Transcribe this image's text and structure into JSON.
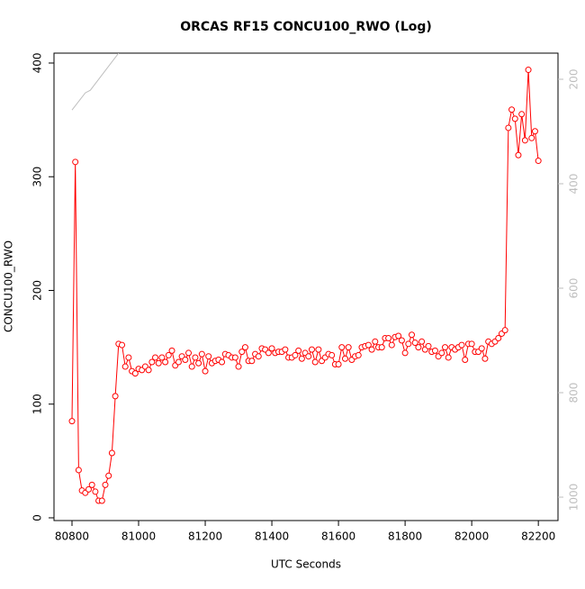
{
  "chart_data": {
    "type": "line",
    "title": "ORCAS RF15 CONCU100_RWO (Log)",
    "x_label": "UTC Seconds",
    "y_label": "CONCU100_RWO",
    "x": [
      80800,
      80810,
      80820,
      80830,
      80840,
      80850,
      80860,
      80870,
      80880,
      80890,
      80900,
      80910,
      80920,
      80930,
      80940,
      80950,
      80960,
      80970,
      80980,
      80990,
      81000,
      81010,
      81020,
      81030,
      81040,
      81050,
      81060,
      81070,
      81080,
      81090,
      81100,
      81110,
      81120,
      81130,
      81140,
      81150,
      81160,
      81170,
      81180,
      81190,
      81200,
      81210,
      81220,
      81230,
      81240,
      81250,
      81260,
      81270,
      81280,
      81290,
      81300,
      81310,
      81320,
      81330,
      81340,
      81350,
      81360,
      81370,
      81380,
      81390,
      81400,
      81410,
      81420,
      81430,
      81440,
      81450,
      81460,
      81470,
      81480,
      81490,
      81500,
      81510,
      81520,
      81530,
      81540,
      81550,
      81560,
      81570,
      81580,
      81590,
      81600,
      81610,
      81620,
      81630,
      81640,
      81650,
      81660,
      81670,
      81680,
      81690,
      81700,
      81710,
      81720,
      81730,
      81740,
      81750,
      81760,
      81770,
      81780,
      81790,
      81800,
      81810,
      81820,
      81830,
      81840,
      81850,
      81860,
      81870,
      81880,
      81890,
      81900,
      81910,
      81920,
      81930,
      81940,
      81950,
      81960,
      81970,
      81980,
      81990,
      82000,
      82010,
      82020,
      82030,
      82040,
      82050,
      82060,
      82070,
      82080,
      82090,
      82100,
      82110,
      82120,
      82130,
      82140,
      82150,
      82160,
      82170,
      82180,
      82190,
      82200
    ],
    "series": [
      {
        "color": "#ff0000",
        "marker": "circle",
        "values": [
          85,
          313,
          42,
          24,
          22,
          25,
          29,
          23,
          15,
          15,
          29,
          37,
          57,
          107,
          153,
          152,
          133,
          141,
          129,
          127,
          131,
          130,
          133,
          130,
          137,
          141,
          136,
          141,
          137,
          143,
          147,
          134,
          137,
          142,
          139,
          145,
          133,
          141,
          136,
          144,
          129,
          142,
          136,
          138,
          139,
          137,
          144,
          143,
          141,
          141,
          133,
          146,
          150,
          138,
          138,
          144,
          142,
          149,
          148,
          145,
          149,
          145,
          146,
          146,
          148,
          141,
          141,
          143,
          147,
          140,
          145,
          142,
          148,
          137,
          148,
          138,
          141,
          144,
          143,
          135,
          135,
          150,
          140,
          150,
          139,
          142,
          143,
          150,
          151,
          152,
          148,
          155,
          150,
          150,
          158,
          158,
          152,
          159,
          160,
          156,
          145,
          153,
          161,
          154,
          150,
          155,
          148,
          151,
          146,
          147,
          142,
          145,
          150,
          141,
          150,
          148,
          150,
          152,
          139,
          153,
          153,
          146,
          146,
          149,
          140,
          155,
          153,
          155,
          158,
          162,
          165,
          343,
          359,
          351,
          319,
          355,
          332,
          394,
          334,
          340,
          314
        ]
      },
      {
        "color": "#bebebe",
        "axis": "y2",
        "x": [
          80800,
          80840,
          80855,
          80940
        ],
        "values": [
          259,
          226,
          221,
          150
        ]
      }
    ],
    "xlim": [
      80746,
      82259
    ],
    "xticks": [
      80800,
      81000,
      81200,
      81400,
      81600,
      81800,
      82000,
      82200
    ],
    "ylim": [
      -2.4,
      408.7
    ],
    "yticks": [
      0,
      100,
      200,
      300,
      400
    ],
    "y2lim": [
      1044.8,
      150
    ],
    "y2ticks": [
      200,
      400,
      600,
      800,
      1000
    ]
  }
}
